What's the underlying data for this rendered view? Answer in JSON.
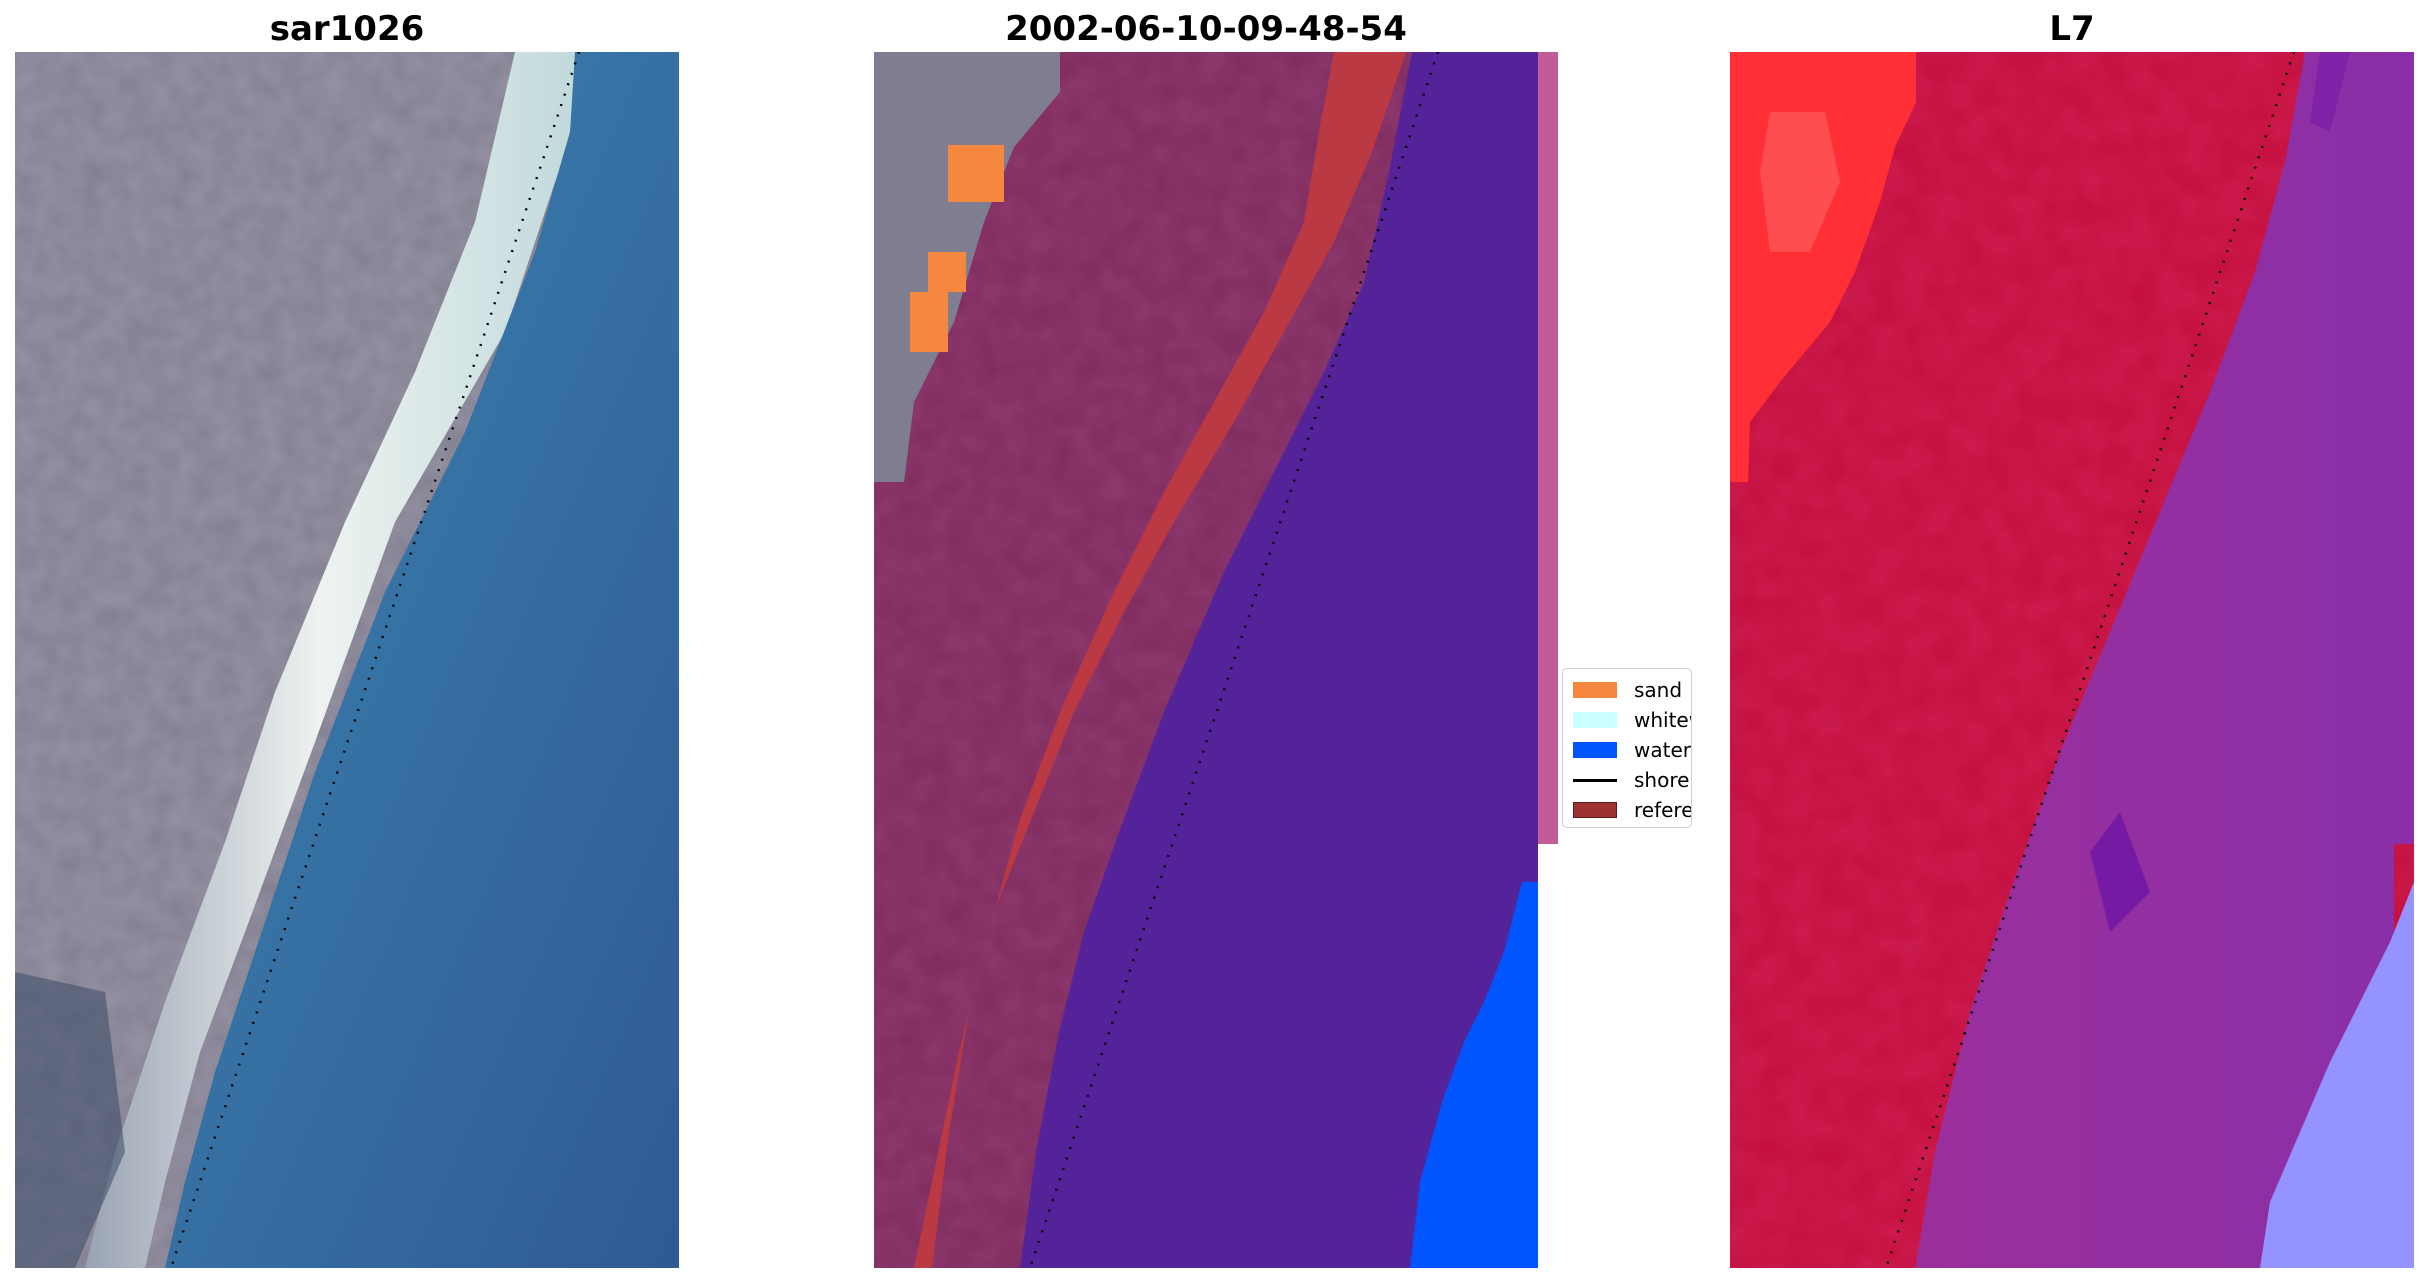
{
  "panels": [
    {
      "title": "sar1026"
    },
    {
      "title": "2002-06-10-09-48-54"
    },
    {
      "title": "L7"
    }
  ],
  "legend": {
    "items": [
      {
        "label": "sand",
        "color": "#f5873f"
      },
      {
        "label": "whitewater",
        "color": "#ccffff"
      },
      {
        "label": "water",
        "color": "#0055ff"
      },
      {
        "label": "shoreline",
        "color": "#000000"
      },
      {
        "label": "reference",
        "color": "#9e3232"
      }
    ]
  },
  "colors": {
    "land_rgb": "#7f7d8d",
    "beach_rgb": "#e9efee",
    "ocean_rgb": "#3a77a8",
    "land_class": "#7f2a5c",
    "beach_class": "#ba3942",
    "ocean_class": "#54239a",
    "side_strip": "#c15c97",
    "ndwi_land": "#c30d3c",
    "ndwi_bright": "#ff2f35",
    "ndwi_ocean": "#8f2b9f",
    "ndwi_shallow": "#9593ff"
  }
}
